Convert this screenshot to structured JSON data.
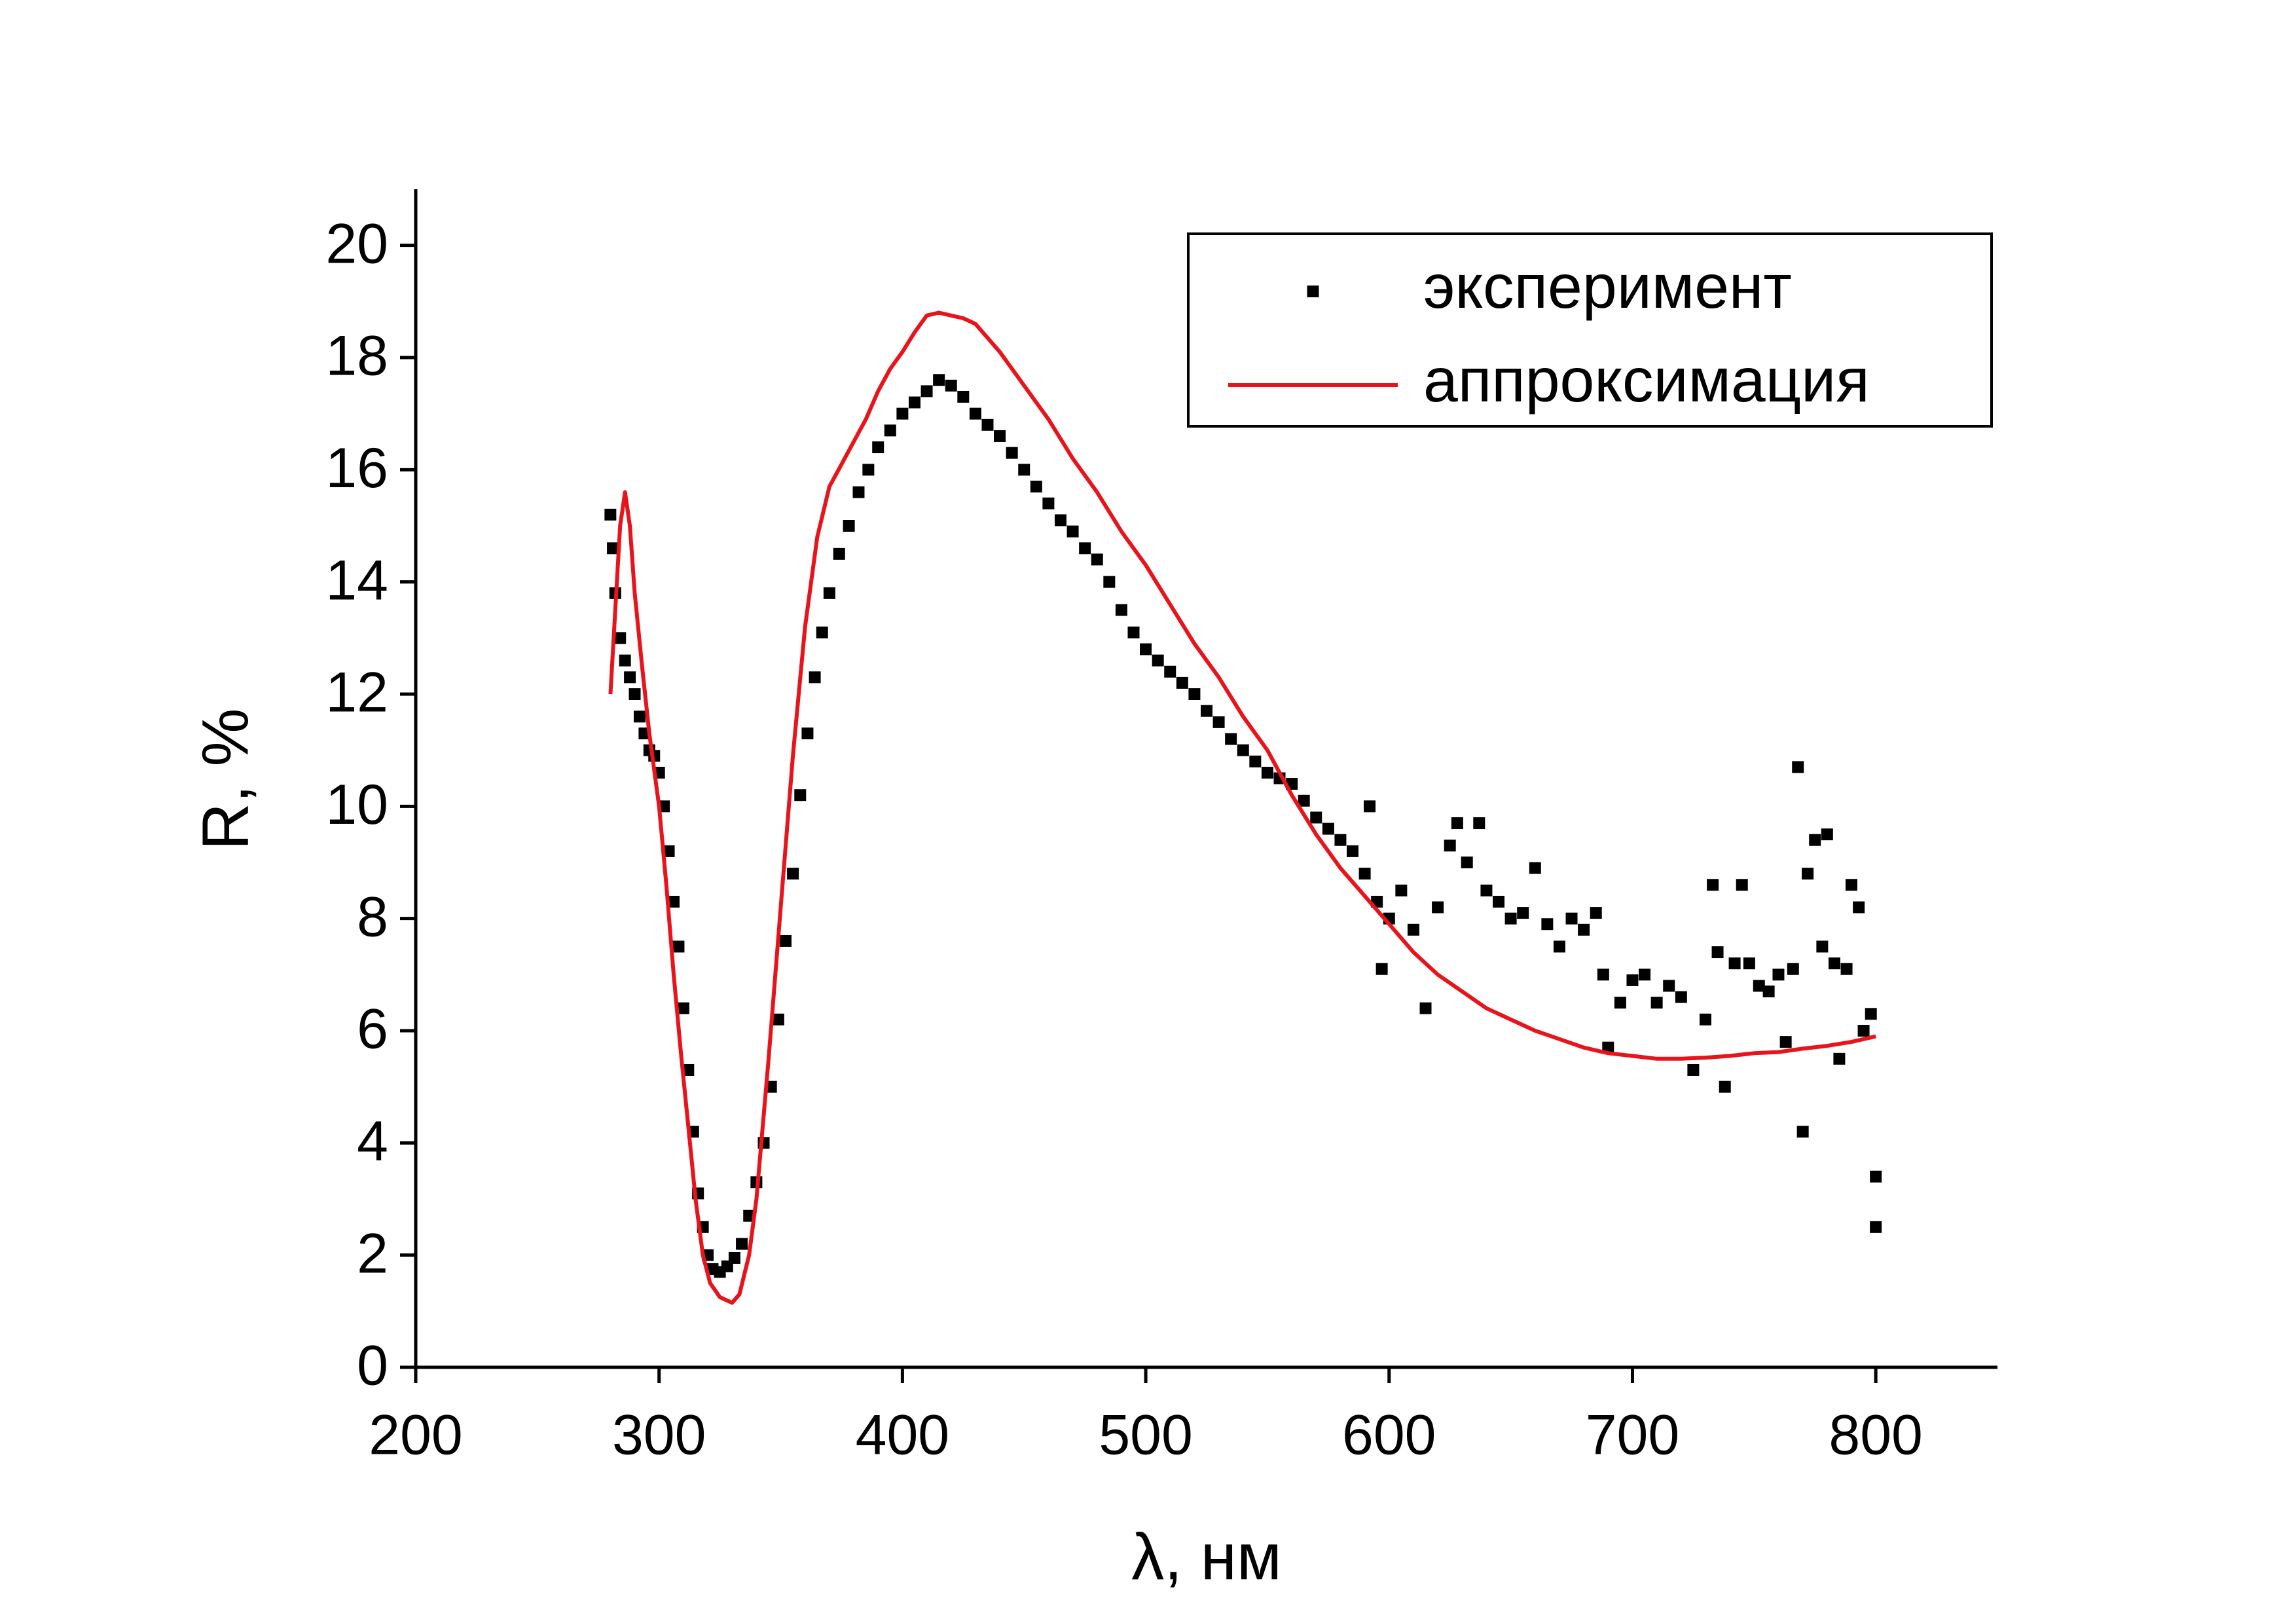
{
  "chart_data": {
    "type": "scatter",
    "x_label": "λ, нм",
    "y_label": "R, %",
    "xlim": [
      200,
      850
    ],
    "ylim": [
      0,
      21
    ],
    "xticks": [
      200,
      300,
      400,
      500,
      600,
      700,
      800
    ],
    "yticks": [
      0,
      2,
      4,
      6,
      8,
      10,
      12,
      14,
      16,
      18,
      20
    ],
    "legend_position": "upper right",
    "series": [
      {
        "name": "эксперимент",
        "type": "scatter",
        "marker": "square",
        "color": "#000000",
        "x": [
          280,
          281,
          282,
          284,
          286,
          288,
          290,
          292,
          294,
          296,
          298,
          300,
          302,
          304,
          306,
          308,
          310,
          312,
          314,
          316,
          318,
          320,
          322,
          325,
          328,
          331,
          334,
          337,
          340,
          343,
          346,
          349,
          352,
          355,
          358,
          361,
          364,
          367,
          370,
          374,
          378,
          382,
          386,
          390,
          395,
          400,
          405,
          410,
          415,
          420,
          425,
          430,
          435,
          440,
          445,
          450,
          455,
          460,
          465,
          470,
          475,
          480,
          485,
          490,
          495,
          500,
          505,
          510,
          515,
          520,
          525,
          530,
          535,
          540,
          545,
          550,
          555,
          560,
          565,
          570,
          575,
          580,
          585,
          590,
          592,
          595,
          597,
          600,
          605,
          610,
          615,
          620,
          625,
          628,
          632,
          637,
          640,
          645,
          650,
          655,
          660,
          665,
          670,
          675,
          680,
          685,
          688,
          690,
          695,
          700,
          705,
          710,
          715,
          720,
          725,
          730,
          733,
          735,
          738,
          742,
          745,
          748,
          752,
          756,
          760,
          763,
          766,
          768,
          770,
          772,
          775,
          778,
          780,
          783,
          785,
          788,
          790,
          793,
          795,
          798,
          800,
          800
        ],
        "values": [
          15.2,
          14.6,
          13.8,
          13.0,
          12.6,
          12.3,
          12.0,
          11.6,
          11.3,
          11.0,
          10.9,
          10.6,
          10.0,
          9.2,
          8.3,
          7.5,
          6.4,
          5.3,
          4.2,
          3.1,
          2.5,
          2.0,
          1.75,
          1.7,
          1.8,
          1.95,
          2.2,
          2.7,
          3.3,
          4.0,
          5.0,
          6.2,
          7.6,
          8.8,
          10.2,
          11.3,
          12.3,
          13.1,
          13.8,
          14.5,
          15.0,
          15.6,
          16.0,
          16.4,
          16.7,
          17.0,
          17.2,
          17.4,
          17.6,
          17.5,
          17.3,
          17.0,
          16.8,
          16.6,
          16.3,
          16.0,
          15.7,
          15.4,
          15.1,
          14.9,
          14.6,
          14.4,
          14.0,
          13.5,
          13.1,
          12.8,
          12.6,
          12.4,
          12.2,
          12.0,
          11.7,
          11.5,
          11.2,
          11.0,
          10.8,
          10.6,
          10.5,
          10.4,
          10.1,
          9.8,
          9.6,
          9.4,
          9.2,
          8.8,
          10.0,
          8.3,
          7.1,
          8.0,
          8.5,
          7.8,
          6.4,
          8.2,
          9.3,
          9.7,
          9.0,
          9.7,
          8.5,
          8.3,
          8.0,
          8.1,
          8.9,
          7.9,
          7.5,
          8.0,
          7.8,
          8.1,
          7.0,
          5.7,
          6.5,
          6.9,
          7.0,
          6.5,
          6.8,
          6.6,
          5.3,
          6.2,
          8.6,
          7.4,
          5.0,
          7.2,
          8.6,
          7.2,
          6.8,
          6.7,
          7.0,
          5.8,
          7.1,
          10.7,
          4.2,
          8.8,
          9.4,
          7.5,
          9.5,
          7.2,
          5.5,
          7.1,
          8.6,
          8.2,
          6.0,
          6.3,
          3.4,
          2.5
        ]
      },
      {
        "name": "аппроксимация",
        "type": "line",
        "color": "#e8141c",
        "x": [
          280,
          282,
          284,
          286,
          288,
          290,
          293,
          296,
          300,
          303,
          306,
          309,
          312,
          315,
          318,
          321,
          325,
          330,
          333,
          337,
          340,
          345,
          350,
          355,
          360,
          365,
          370,
          375,
          380,
          385,
          390,
          395,
          400,
          405,
          410,
          415,
          420,
          425,
          430,
          440,
          450,
          460,
          470,
          480,
          490,
          500,
          510,
          520,
          530,
          540,
          550,
          560,
          570,
          580,
          590,
          600,
          610,
          620,
          630,
          640,
          650,
          660,
          670,
          680,
          690,
          700,
          710,
          720,
          730,
          740,
          750,
          760,
          770,
          780,
          790,
          800
        ],
        "values": [
          12.0,
          13.5,
          15.0,
          15.6,
          15.0,
          13.8,
          12.5,
          11.3,
          10.0,
          8.6,
          7.0,
          5.6,
          4.3,
          3.0,
          2.0,
          1.5,
          1.25,
          1.15,
          1.3,
          2.0,
          3.0,
          5.5,
          8.2,
          10.9,
          13.2,
          14.8,
          15.7,
          16.1,
          16.5,
          16.9,
          17.4,
          17.8,
          18.1,
          18.45,
          18.75,
          18.8,
          18.75,
          18.7,
          18.6,
          18.1,
          17.5,
          16.9,
          16.2,
          15.6,
          14.9,
          14.3,
          13.6,
          12.9,
          12.3,
          11.6,
          11.0,
          10.2,
          9.5,
          8.9,
          8.4,
          7.9,
          7.4,
          7.0,
          6.7,
          6.4,
          6.2,
          6.0,
          5.85,
          5.7,
          5.6,
          5.55,
          5.5,
          5.5,
          5.52,
          5.55,
          5.6,
          5.62,
          5.68,
          5.73,
          5.8,
          5.9
        ]
      }
    ]
  }
}
